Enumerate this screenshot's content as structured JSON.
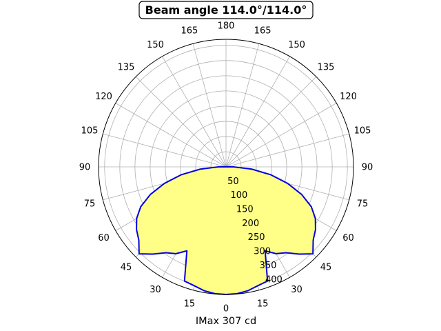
{
  "chart_data": {
    "type": "polar-area",
    "title": "Beam angle 114.0°/114.0°",
    "xlabel": "IMax 307 cd",
    "angle_tick_labels": [
      "180",
      "165",
      "150",
      "135",
      "120",
      "105",
      "90",
      "75",
      "60",
      "45",
      "30",
      "15",
      "0",
      "15",
      "30",
      "45",
      "60",
      "75",
      "90",
      "105",
      "120",
      "135",
      "150",
      "165"
    ],
    "angle_tick_values_deg": [
      180,
      165,
      150,
      135,
      120,
      105,
      90,
      75,
      60,
      45,
      30,
      15,
      0,
      15,
      30,
      45,
      60,
      75,
      90,
      105,
      120,
      135,
      150,
      165
    ],
    "radial_ticks": [
      50,
      100,
      150,
      200,
      250,
      300,
      350,
      400
    ],
    "radial_tick_labels": [
      "50",
      "100",
      "150",
      "200",
      "250",
      "300",
      "350",
      "400"
    ],
    "rmax": 420,
    "grid": true,
    "fill_color": "#ffff88",
    "line_color": "#0000dd",
    "series": [
      {
        "angle_deg": [
          0,
          5,
          10,
          15,
          20,
          25,
          30,
          35,
          40,
          45,
          50,
          55,
          60,
          65,
          70,
          75,
          80,
          85,
          90,
          95,
          100
        ],
        "intensity": [
          420,
          419,
          414,
          405,
          400,
          305,
          330,
          345,
          375,
          405,
          375,
          360,
          340,
          310,
          265,
          210,
          150,
          85,
          25,
          3,
          0
        ]
      }
    ]
  }
}
